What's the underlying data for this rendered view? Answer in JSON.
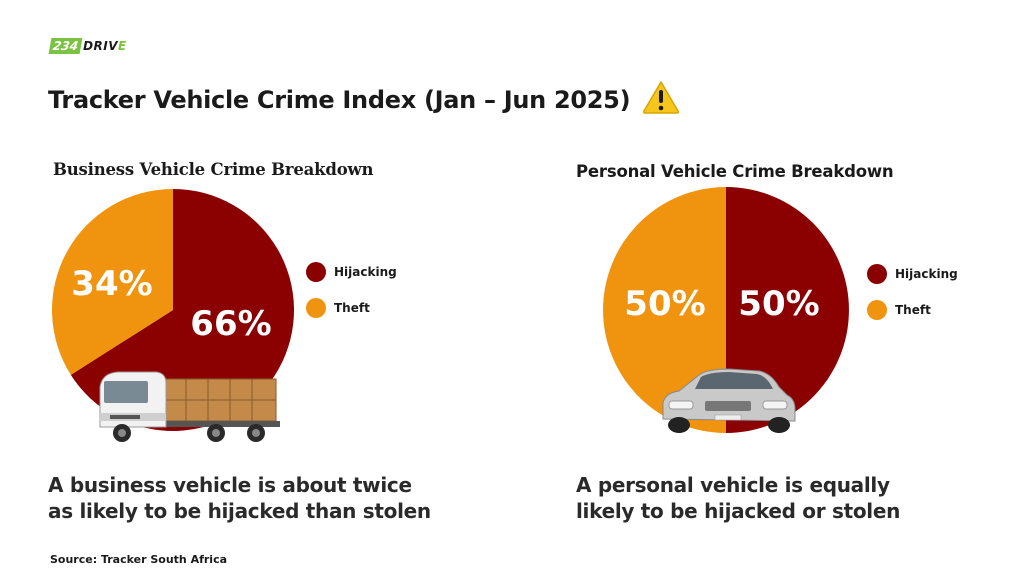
{
  "logo": {
    "number": "234",
    "word": "DRIV",
    "word_end": "E"
  },
  "title": "Tracker Vehicle Crime Index (Jan – Jun 2025)",
  "icons": {
    "title_icon": "warning-icon",
    "business_image": "truck-icon",
    "personal_image": "car-icon"
  },
  "colors": {
    "hijacking": "#8b0000",
    "theft": "#f0940f",
    "brand": "#7cc242"
  },
  "chart_data": [
    {
      "type": "pie",
      "title": "Business Vehicle Crime Breakdown",
      "labels": [
        "Hijacking",
        "Theft"
      ],
      "values": [
        66,
        34
      ],
      "value_labels": [
        "66%",
        "34%"
      ],
      "legend": "right"
    },
    {
      "type": "pie",
      "title": "Personal Vehicle Crime Breakdown",
      "labels": [
        "Hijacking",
        "Theft"
      ],
      "values": [
        50,
        50
      ],
      "value_labels": [
        "50%",
        "50%"
      ],
      "legend": "right"
    }
  ],
  "captions": {
    "business": [
      "A business vehicle is about twice",
      "as likely to be hijacked than stolen"
    ],
    "personal": [
      "A personal vehicle is equally",
      "likely to be hijacked or stolen"
    ]
  },
  "source": "Source: Tracker South Africa"
}
